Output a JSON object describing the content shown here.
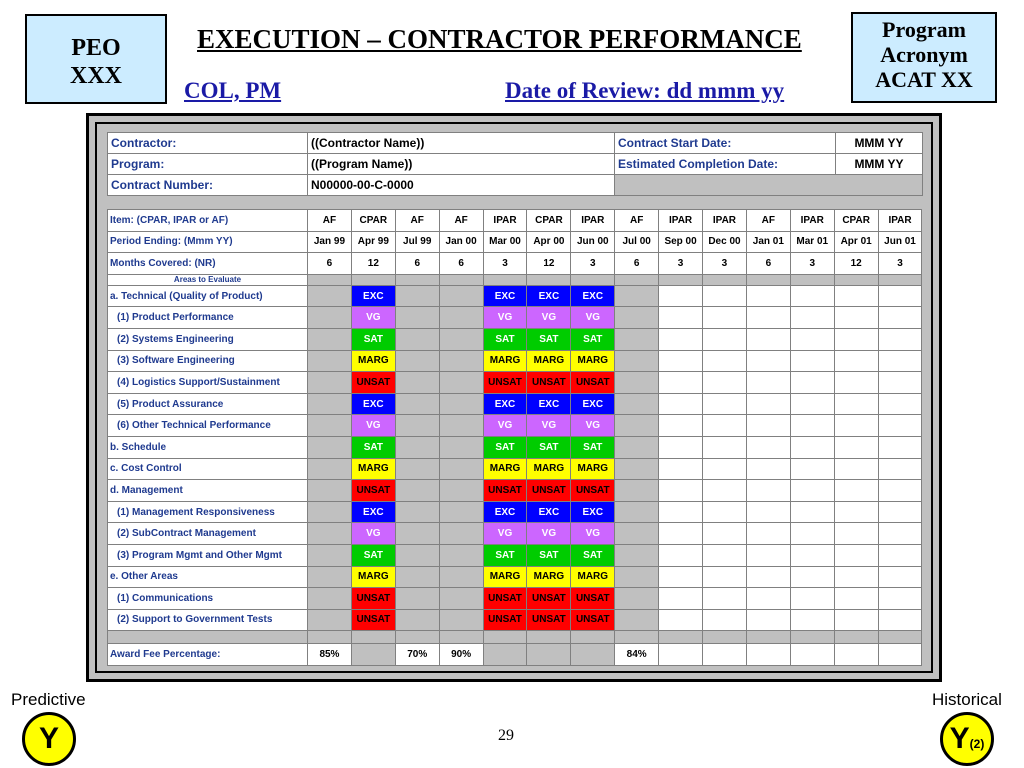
{
  "header": {
    "peo_line1": "PEO",
    "peo_line2": "XXX",
    "title": "EXECUTION – CONTRACTOR PERFORMANCE",
    "acronym_line1": "Program",
    "acronym_line2": "Acronym",
    "acronym_line3": "ACAT XX",
    "col_pm": "COL, PM",
    "date_of_review": "Date of Review: dd mmm yy"
  },
  "info": {
    "contractor_label": "Contractor:",
    "contractor_value": "((Contractor Name))",
    "program_label": "Program:",
    "program_value": "((Program Name))",
    "contract_number_label": "Contract Number:",
    "contract_number_value": "N00000-00-C-0000",
    "start_label": "Contract Start Date:",
    "start_value": "MMM YY",
    "completion_label": "Estimated Completion Date:",
    "completion_value": "MMM YY"
  },
  "grid": {
    "item_label": "Item: (CPAR, IPAR or AF)",
    "period_label": "Period Ending: (Mmm YY)",
    "months_label": "Months Covered: (NR)",
    "areas_label": "Areas to Evaluate",
    "award_label": "Award Fee Percentage:",
    "items": [
      "AF",
      "CPAR",
      "AF",
      "AF",
      "IPAR",
      "CPAR",
      "IPAR",
      "AF",
      "IPAR",
      "IPAR",
      "AF",
      "IPAR",
      "CPAR",
      "IPAR"
    ],
    "periods": [
      "Jan 99",
      "Apr 99",
      "Jul 99",
      "Jan 00",
      "Mar 00",
      "Apr 00",
      "Jun 00",
      "Jul 00",
      "Sep 00",
      "Dec 00",
      "Jan 01",
      "Mar 01",
      "Apr 01",
      "Jun 01"
    ],
    "months": [
      "6",
      "12",
      "6",
      "6",
      "3",
      "12",
      "3",
      "6",
      "3",
      "3",
      "6",
      "3",
      "12",
      "3"
    ],
    "award": [
      "85%",
      "",
      "70%",
      "90%",
      "",
      "",
      "",
      "84%",
      "",
      "",
      "",
      "",
      "",
      ""
    ],
    "rows": [
      {
        "label": "a. Technical (Quality of Product)",
        "indent": false,
        "rating": "EXC"
      },
      {
        "label": "(1) Product Performance",
        "indent": true,
        "rating": "VG"
      },
      {
        "label": "(2) Systems Engineering",
        "indent": true,
        "rating": "SAT"
      },
      {
        "label": "(3) Software Engineering",
        "indent": true,
        "rating": "MARG"
      },
      {
        "label": "(4) Logistics Support/Sustainment",
        "indent": true,
        "rating": "UNSAT"
      },
      {
        "label": "(5) Product Assurance",
        "indent": true,
        "rating": "EXC"
      },
      {
        "label": "(6) Other Technical Performance",
        "indent": true,
        "rating": "VG"
      },
      {
        "label": "b. Schedule",
        "indent": false,
        "rating": "SAT"
      },
      {
        "label": "c. Cost Control",
        "indent": false,
        "rating": "MARG"
      },
      {
        "label": "d. Management",
        "indent": false,
        "rating": "UNSAT"
      },
      {
        "label": "(1) Management Responsiveness",
        "indent": true,
        "rating": "EXC"
      },
      {
        "label": "(2) SubContract Management",
        "indent": true,
        "rating": "VG"
      },
      {
        "label": "(3) Program Mgmt and Other Mgmt",
        "indent": true,
        "rating": "SAT"
      },
      {
        "label": "e. Other Areas",
        "indent": false,
        "rating": "MARG"
      },
      {
        "label": "(1) Communications",
        "indent": true,
        "rating": "UNSAT"
      },
      {
        "label": "(2) Support to Government Tests",
        "indent": true,
        "rating": "UNSAT"
      }
    ],
    "rated_columns": [
      1,
      4,
      5,
      6
    ],
    "gray_columns": [
      0,
      2,
      3,
      7
    ]
  },
  "footer": {
    "predictive_label": "Predictive",
    "historical_label": "Historical",
    "predictive_rating": "Y",
    "historical_rating": "Y",
    "historical_note": "(2)",
    "page_number": "29"
  },
  "colors": {
    "EXC": "#0000ff",
    "VG": "#cc66ff",
    "SAT": "#00cc00",
    "MARG": "#ffff00",
    "UNSAT": "#ff0000",
    "rating_circle": "#ffff00",
    "header_box": "#ccecff",
    "label_blue": "#1f3a8f"
  }
}
